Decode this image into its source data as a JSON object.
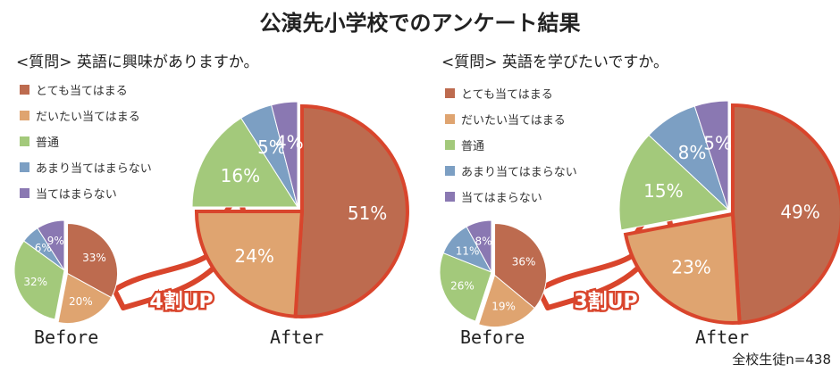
{
  "title": "公演先小学校でのアンケート結果",
  "note": "全校生徒n=438",
  "colors": [
    "#bd6b4f",
    "#dfa470",
    "#a3c97b",
    "#7c9fc3",
    "#8a78b2"
  ],
  "highlight_color": "#d9452c",
  "chart_data": [
    {
      "type": "pie",
      "question": "<質問> 英語に興味がありますか。",
      "categories": [
        "とても当てはまる",
        "だいたい当てはまる",
        "普通",
        "あまり当てはまらない",
        "当てはまらない"
      ],
      "legend": "left",
      "before": {
        "label": "Before",
        "values": [
          33,
          20,
          32,
          6,
          9
        ]
      },
      "after": {
        "label": "After",
        "values": [
          51,
          24,
          16,
          5,
          4
        ]
      },
      "badge": "4割UP"
    },
    {
      "type": "pie",
      "question": "<質問> 英語を学びたいですか。",
      "categories": [
        "とても当てはまる",
        "だいたい当てはまる",
        "普通",
        "あまり当てはまらない",
        "当てはまらない"
      ],
      "legend": "left",
      "before": {
        "label": "Before",
        "values": [
          36,
          19,
          26,
          11,
          8
        ]
      },
      "after": {
        "label": "After",
        "values": [
          49,
          23,
          15,
          8,
          5
        ]
      },
      "badge": "3割UP"
    }
  ]
}
